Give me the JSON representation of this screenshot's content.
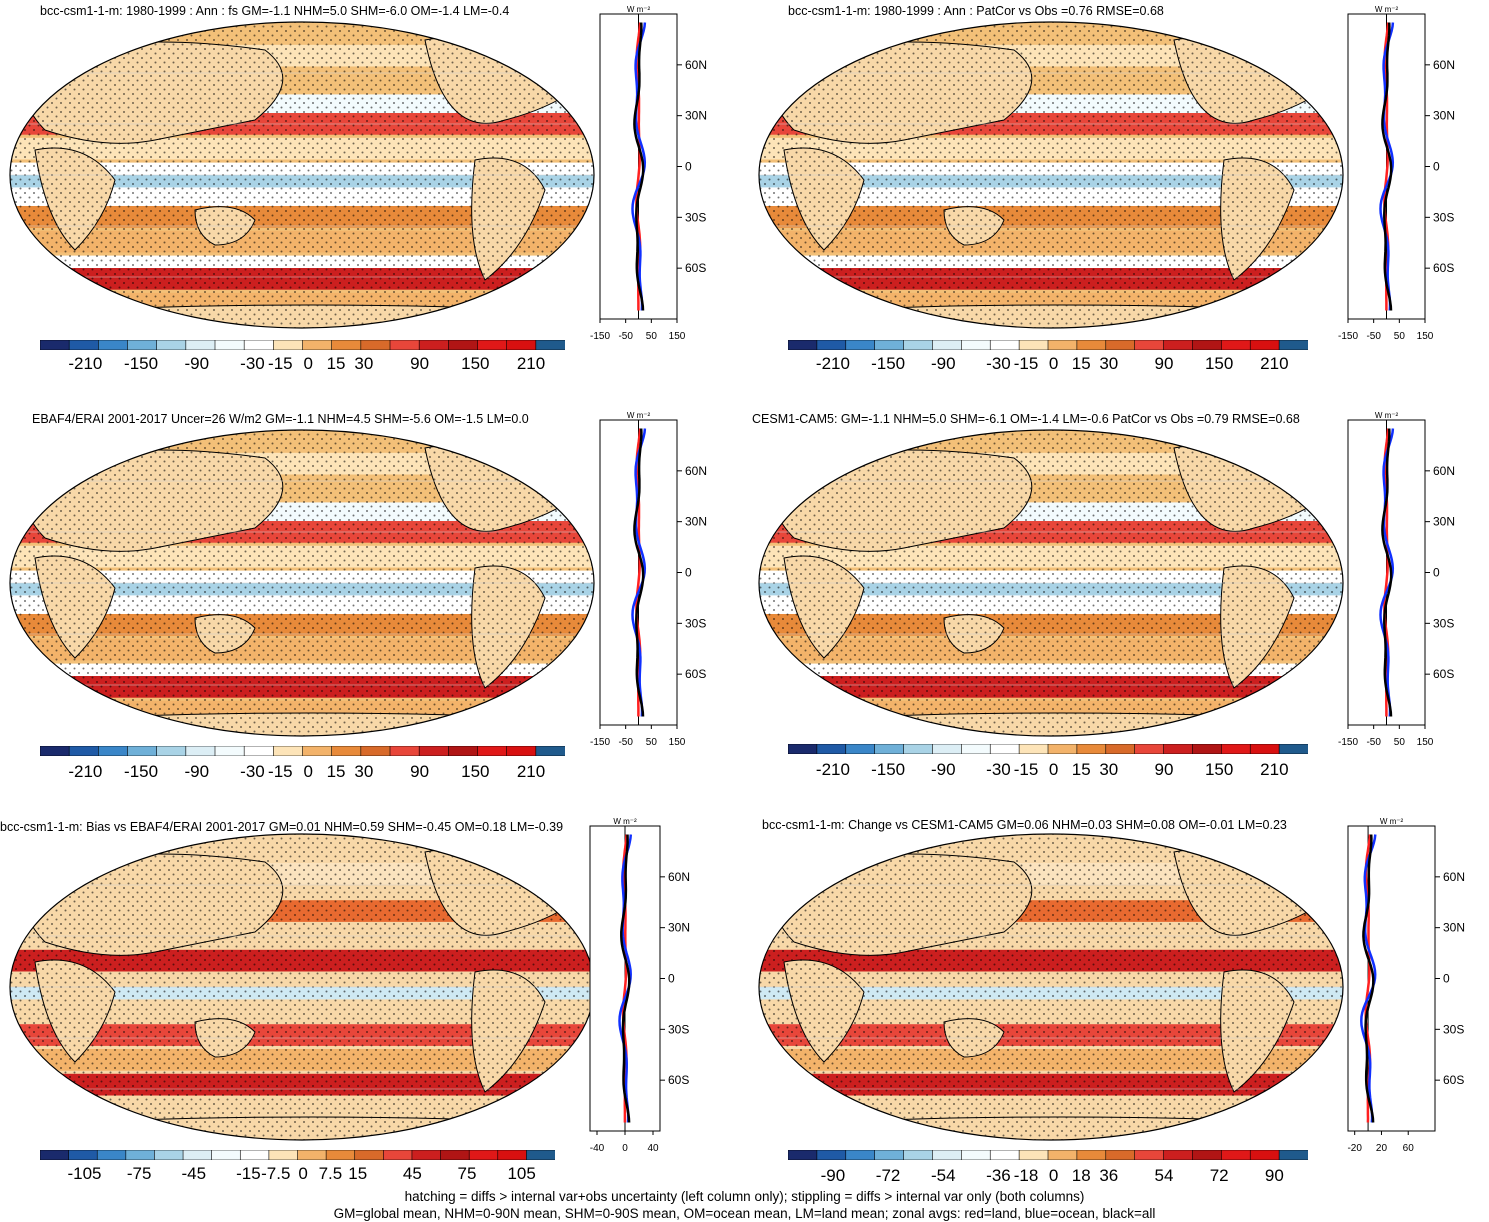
{
  "panels": [
    {
      "title": "bcc-csm1-1-m: 1980-1999 : Ann : fs GM=-1.1 NHM=5.0 SHM=-6.0 OM=-1.4 LM=-0.4",
      "colorbar_labels": [
        "-210",
        "-150",
        "-90",
        "-30",
        "-15",
        "0",
        "15",
        "30",
        "90",
        "150",
        "210"
      ],
      "zonal": {
        "unit_label": "W m⁻²",
        "lat_labels": [
          "60N",
          "30N",
          "0",
          "30S",
          "60S"
        ],
        "x_ticks": [
          "-150",
          "-50",
          "50",
          "150"
        ],
        "x_range": [
          -150,
          150
        ],
        "x_tick_values": [
          -150,
          -50,
          50,
          150
        ]
      }
    },
    {
      "title": "bcc-csm1-1-m: 1980-1999 : Ann : PatCor vs Obs =0.76 RMSE=0.68",
      "colorbar_labels": [
        "-210",
        "-150",
        "-90",
        "-30",
        "-15",
        "0",
        "15",
        "30",
        "90",
        "150",
        "210"
      ],
      "zonal": {
        "unit_label": "W m⁻²",
        "lat_labels": [
          "60N",
          "30N",
          "0",
          "30S",
          "60S"
        ],
        "x_ticks": [
          "-150",
          "-50",
          "50",
          "150"
        ],
        "x_range": [
          -150,
          150
        ],
        "x_tick_values": [
          -150,
          -50,
          50,
          150
        ]
      }
    },
    {
      "title": "EBAF4/ERAI 2001-2017 Uncer=26 W/m2 GM=-1.1 NHM=4.5 SHM=-5.6 OM=-1.5 LM=0.0",
      "colorbar_labels": [
        "-210",
        "-150",
        "-90",
        "-30",
        "-15",
        "0",
        "15",
        "30",
        "90",
        "150",
        "210"
      ],
      "zonal": {
        "unit_label": "W m⁻²",
        "lat_labels": [
          "60N",
          "30N",
          "0",
          "30S",
          "60S"
        ],
        "x_ticks": [
          "-150",
          "-50",
          "50",
          "150"
        ],
        "x_range": [
          -150,
          150
        ],
        "x_tick_values": [
          -150,
          -50,
          50,
          150
        ]
      }
    },
    {
      "title": "CESM1-CAM5: GM=-1.1 NHM=5.0 SHM=-6.1 OM=-1.4 LM=-0.6 PatCor vs Obs =0.79 RMSE=0.68",
      "colorbar_labels": [
        "-210",
        "-150",
        "-90",
        "-30",
        "-15",
        "0",
        "15",
        "30",
        "90",
        "150",
        "210"
      ],
      "zonal": {
        "unit_label": "W m⁻²",
        "lat_labels": [
          "60N",
          "30N",
          "0",
          "30S",
          "60S"
        ],
        "x_ticks": [
          "-150",
          "-50",
          "50",
          "150"
        ],
        "x_range": [
          -150,
          150
        ],
        "x_tick_values": [
          -150,
          -50,
          50,
          150
        ]
      }
    },
    {
      "title": "bcc-csm1-1-m: Bias vs EBAF4/ERAI 2001-2017 GM=0.01 NHM=0.59 SHM=-0.45 OM=0.18 LM=-0.39",
      "colorbar_labels": [
        "-105",
        "-75",
        "-45",
        "-15",
        "-7.5",
        "0",
        "7.5",
        "15",
        "45",
        "75",
        "105"
      ],
      "zonal": {
        "unit_label": "W m⁻²",
        "lat_labels": [
          "60N",
          "30N",
          "0",
          "30S",
          "60S"
        ],
        "x_ticks": [
          "-40",
          "0",
          "40"
        ],
        "x_range": [
          -50,
          50
        ],
        "x_tick_values": [
          -40,
          0,
          40
        ]
      }
    },
    {
      "title": "bcc-csm1-1-m: Change vs CESM1-CAM5 GM=0.06 NHM=0.03 SHM=0.08 OM=-0.01 LM=0.23",
      "colorbar_labels": [
        "-90",
        "-72",
        "-54",
        "-36",
        "-18",
        "0",
        "18",
        "36",
        "54",
        "72",
        "90"
      ],
      "zonal": {
        "unit_label": "W m⁻²",
        "lat_labels": [
          "60N",
          "30N",
          "0",
          "30S",
          "60S"
        ],
        "x_ticks": [
          "-20",
          "20",
          "60"
        ],
        "x_range": [
          -30,
          100
        ],
        "x_tick_values": [
          -20,
          20,
          60
        ]
      }
    }
  ],
  "colors": {
    "palette": [
      "#1a2a6c",
      "#1f5aa6",
      "#3a86c8",
      "#6fb0d8",
      "#a9d3e6",
      "#dceef5",
      "#f3fbfd",
      "#ffffff",
      "#fde4b8",
      "#f3b36a",
      "#e88a3a",
      "#d86a2a",
      "#e8463a",
      "#cc1f1f",
      "#b01515",
      "#e01818",
      "#d81010",
      "#1f5a8c"
    ],
    "land": "#f8d8a8",
    "ocean_base": "#f0c070",
    "zonal_land": "#ff2020",
    "zonal_ocean": "#1030ff",
    "zonal_all": "#000000"
  },
  "footer": {
    "line1": "hatching = diffs > internal var+obs uncertainty (left column only); stippling = diffs > internal var only (both columns)",
    "line2": "GM=global mean, NHM=0-90N mean, SHM=0-90S mean, OM=ocean mean, LM=land mean; zonal avgs: red=land, blue=ocean, black=all"
  }
}
